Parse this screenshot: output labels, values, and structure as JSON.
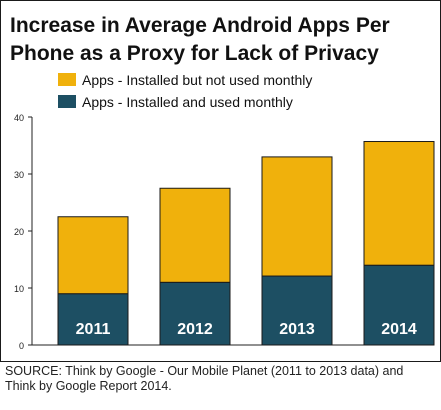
{
  "chart_data": {
    "type": "bar",
    "stacked": true,
    "title_line1": "Increase in Average Android Apps Per",
    "title_line2": "Phone as a Proxy for Lack of Privacy",
    "categories": [
      "2011",
      "2012",
      "2013",
      "2014"
    ],
    "series": [
      {
        "name": "Apps - Installed and used monthly",
        "values": [
          9,
          11,
          12.1,
          14
        ],
        "color": "#1d4f63"
      },
      {
        "name": "Apps - Installed but not used monthly",
        "values": [
          13.5,
          16.5,
          20.9,
          21.7
        ],
        "color": "#f0b10c"
      }
    ],
    "totals": [
      22.5,
      27.5,
      33,
      35.7
    ],
    "ylim": [
      0,
      40
    ],
    "yticks": [
      "0",
      "10",
      "20",
      "30",
      "40"
    ],
    "legend_order": [
      1,
      0
    ],
    "legend_position": "top-left",
    "grid": false
  },
  "source_text": "SOURCE: Think by Google - Our Mobile Planet (2011 to 2013 data) and Think by Google Report 2014."
}
